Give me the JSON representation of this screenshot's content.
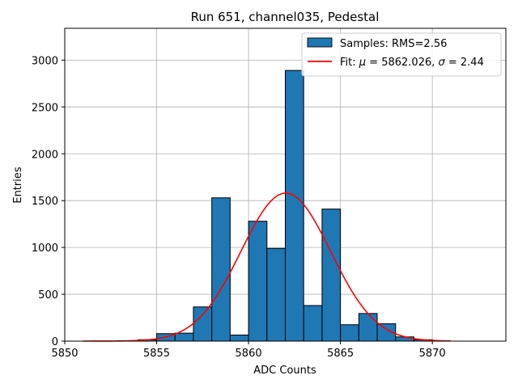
{
  "chart_data": {
    "type": "histogram",
    "title": "Run 651, channel035, Pedestal",
    "xlabel": "ADC Counts",
    "ylabel": "Entries",
    "xlim": [
      5850,
      5874
    ],
    "ylim": [
      0,
      3340
    ],
    "xticks": [
      5850,
      5855,
      5860,
      5865,
      5870
    ],
    "yticks": [
      0,
      500,
      1000,
      1500,
      2000,
      2500,
      3000
    ],
    "grid": true,
    "legend_position": "top-right",
    "bar_color": "#1f77b4",
    "fit_color": "#ff0000",
    "bins": [
      {
        "x0": 5854,
        "x1": 5855,
        "value": 15
      },
      {
        "x0": 5855,
        "x1": 5856,
        "value": 80
      },
      {
        "x0": 5856,
        "x1": 5857,
        "value": 85
      },
      {
        "x0": 5857,
        "x1": 5858,
        "value": 365
      },
      {
        "x0": 5858,
        "x1": 5859,
        "value": 1530
      },
      {
        "x0": 5859,
        "x1": 5860,
        "value": 65
      },
      {
        "x0": 5860,
        "x1": 5861,
        "value": 1280
      },
      {
        "x0": 5861,
        "x1": 5862,
        "value": 990
      },
      {
        "x0": 5862,
        "x1": 5863,
        "value": 2890
      },
      {
        "x0": 5863,
        "x1": 5864,
        "value": 380
      },
      {
        "x0": 5864,
        "x1": 5865,
        "value": 1410
      },
      {
        "x0": 5865,
        "x1": 5866,
        "value": 175
      },
      {
        "x0": 5866,
        "x1": 5867,
        "value": 295
      },
      {
        "x0": 5867,
        "x1": 5868,
        "value": 185
      },
      {
        "x0": 5868,
        "x1": 5869,
        "value": 45
      },
      {
        "x0": 5869,
        "x1": 5870,
        "value": 15
      }
    ],
    "fit": {
      "type": "gaussian",
      "mu": 5862.026,
      "sigma": 2.44,
      "amplitude": 1580,
      "x_range": [
        5851,
        5871
      ]
    },
    "legend": {
      "histogram_label": "Samples: RMS=2.56",
      "fit_label_prefix": "Fit: ",
      "fit_label_mu": "μ",
      "fit_label_mid": " = 5862.026, ",
      "fit_label_sigma": "σ",
      "fit_label_suffix": " = 2.44"
    }
  }
}
